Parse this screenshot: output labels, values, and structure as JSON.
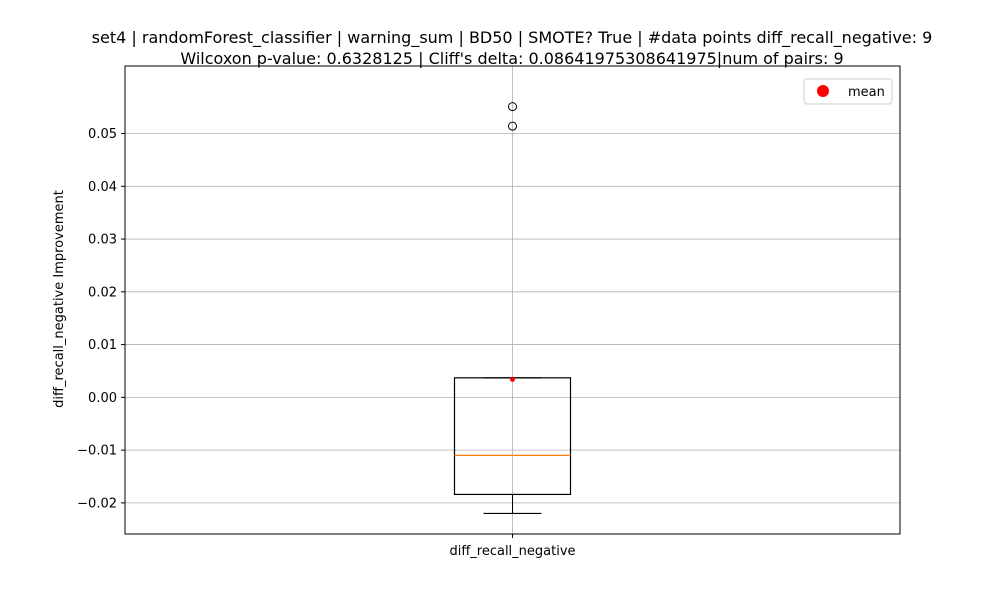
{
  "chart_data": {
    "type": "box",
    "title": [
      "set4 | randomForest_classifier | warning_sum | BD50 | SMOTE? True | #data points diff_recall_negative: 9",
      "Wilcoxon p-value: 0.6328125 | Cliff's delta: 0.08641975308641975|num of pairs: 9"
    ],
    "xlabel": "",
    "ylabel": "diff_recall_negative Improvement",
    "categories": [
      "diff_recall_negative"
    ],
    "ylim": [
      -0.0259,
      0.0628
    ],
    "yticks": [
      -0.02,
      -0.01,
      0.0,
      0.01,
      0.02,
      0.03,
      0.04,
      0.05
    ],
    "ytick_labels": [
      "−0.02",
      "−0.01",
      "0.00",
      "0.01",
      "0.02",
      "0.03",
      "0.04",
      "0.05"
    ],
    "grid": true,
    "legend": {
      "position": "top-right",
      "entries": [
        {
          "label": "mean",
          "color": "#ff0000",
          "marker": "circle"
        }
      ]
    },
    "boxes": [
      {
        "category": "diff_recall_negative",
        "whisker_low": -0.022,
        "q1": -0.0184,
        "median": -0.011,
        "q3": 0.0037,
        "whisker_high": 0.0037,
        "mean": 0.0034,
        "outliers": [
          0.0514,
          0.0551
        ]
      }
    ],
    "colors": {
      "box": "#000000",
      "median": "#ff7f0e",
      "mean": "#ff0000",
      "grid": "#b0b0b0"
    }
  }
}
